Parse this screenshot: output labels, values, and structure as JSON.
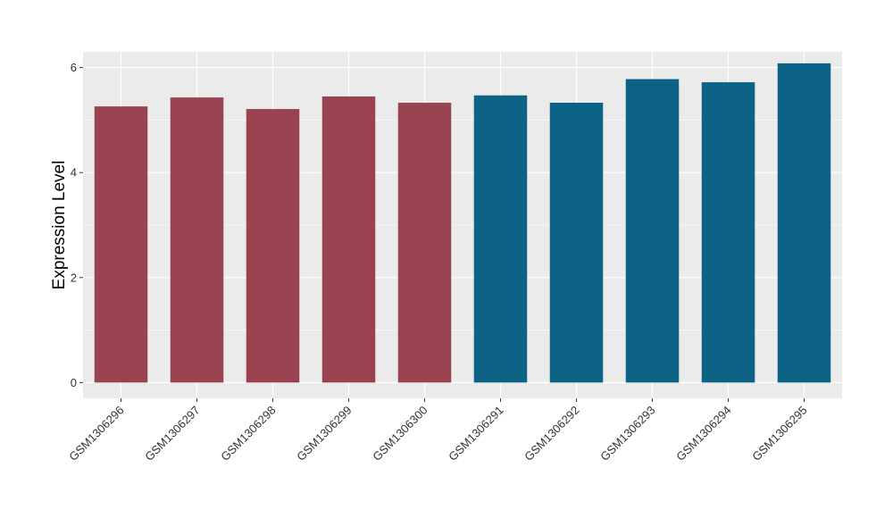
{
  "chart_data": {
    "type": "bar",
    "title": "",
    "xlabel": "",
    "ylabel": "Expression Level",
    "ylim": [
      -0.3,
      6.3
    ],
    "yticks": [
      0,
      2,
      4,
      6
    ],
    "grid": true,
    "categories": [
      "GSM1306296",
      "GSM1306297",
      "GSM1306298",
      "GSM1306299",
      "GSM1306300",
      "GSM1306291",
      "GSM1306292",
      "GSM1306293",
      "GSM1306294",
      "GSM1306295"
    ],
    "values": [
      5.26,
      5.43,
      5.21,
      5.45,
      5.33,
      5.47,
      5.33,
      5.78,
      5.72,
      6.08
    ],
    "bar_colors": [
      "#9a4350",
      "#9a4350",
      "#9a4350",
      "#9a4350",
      "#9a4350",
      "#0c6385",
      "#0c6385",
      "#0c6385",
      "#0c6385",
      "#0c6385"
    ],
    "panel_background": "#ebebeb",
    "gridline_color": "#ffffff"
  }
}
